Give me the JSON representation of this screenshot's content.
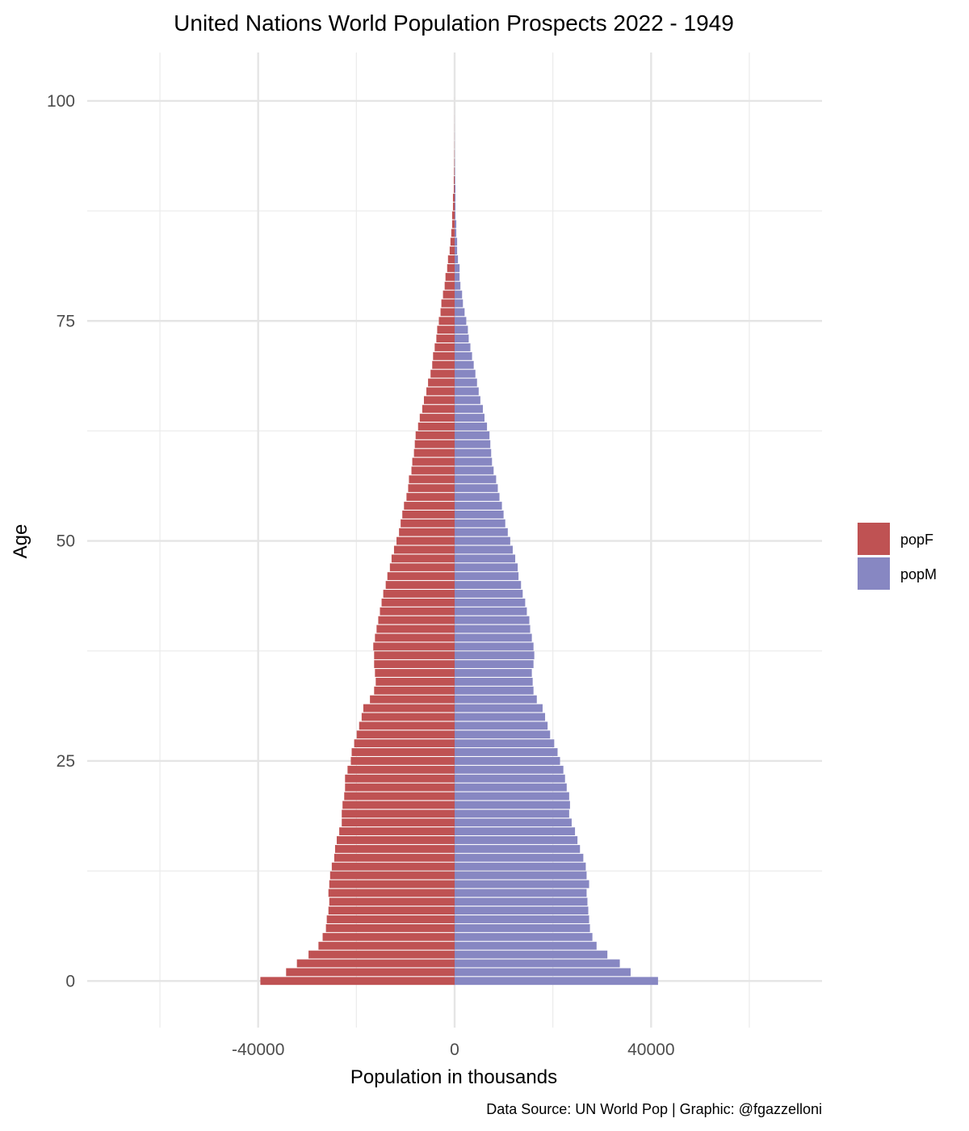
{
  "chart_data": {
    "type": "bar",
    "orientation": "horizontal",
    "title": "United Nations World Population Prospects 2022 - 1949",
    "xlabel": "Population in thousands",
    "ylabel": "Age",
    "caption": "Data Source: UN World Pop | Graphic: @fgazzelloni",
    "xlim": [
      -74800,
      74800
    ],
    "ylim": [
      -5.3,
      105.5
    ],
    "x_ticks": [
      -40000,
      0,
      40000
    ],
    "x_tick_labels": [
      "-40000",
      "0",
      "40000"
    ],
    "x_minor_grid": [
      -60000,
      -20000,
      20000,
      60000
    ],
    "y_ticks": [
      0,
      25,
      50,
      75,
      100
    ],
    "y_tick_labels": [
      "0",
      "25",
      "50",
      "75",
      "100"
    ],
    "y_minor_grid": [
      12.5,
      37.5,
      62.5,
      87.5
    ],
    "grid": true,
    "legend_position": "right",
    "ages_start": 0,
    "series": [
      {
        "name": "popF",
        "color": "#BF5253",
        "sign": -1,
        "values": [
          39550,
          34310,
          32110,
          29740,
          27720,
          26870,
          26200,
          26030,
          25690,
          25520,
          25690,
          25520,
          25350,
          25010,
          24510,
          24340,
          24000,
          23490,
          22980,
          22980,
          22820,
          22480,
          22310,
          22310,
          21800,
          21130,
          20960,
          20450,
          19940,
          19440,
          18930,
          18590,
          17240,
          16390,
          16060,
          16220,
          16390,
          16390,
          16560,
          16220,
          15890,
          15550,
          15210,
          14870,
          14530,
          14030,
          13690,
          13180,
          12840,
          12340,
          11830,
          11320,
          10990,
          10650,
          10310,
          9800,
          9460,
          9300,
          8790,
          8620,
          8280,
          8110,
          7940,
          7440,
          7100,
          6590,
          6250,
          5750,
          5410,
          4900,
          4560,
          4390,
          4060,
          3720,
          3550,
          3210,
          2870,
          2700,
          2370,
          2030,
          1860,
          1520,
          1350,
          1010,
          850,
          680,
          510,
          510,
          340,
          340,
          170,
          170,
          100,
          70,
          50,
          30,
          20,
          15,
          10,
          6,
          4
        ]
      },
      {
        "name": "popM",
        "color": "#8787C2",
        "sign": 1,
        "values": [
          41410,
          35830,
          33630,
          31100,
          28900,
          28050,
          27550,
          27380,
          27210,
          27040,
          26870,
          27380,
          26870,
          26700,
          26200,
          25520,
          25010,
          24510,
          23830,
          23320,
          23490,
          23320,
          22820,
          22480,
          22140,
          21460,
          20960,
          20280,
          19440,
          18930,
          18420,
          17910,
          16730,
          16060,
          15890,
          15720,
          16060,
          16220,
          16060,
          15720,
          15380,
          15210,
          14700,
          14370,
          13860,
          13520,
          13010,
          12840,
          12340,
          11830,
          11320,
          10820,
          10310,
          9970,
          9630,
          9130,
          8790,
          8450,
          7940,
          7610,
          7440,
          7270,
          7100,
          6590,
          6080,
          5750,
          5240,
          4900,
          4560,
          4230,
          3890,
          3550,
          3210,
          2870,
          2700,
          2370,
          2030,
          1690,
          1520,
          1180,
          1010,
          1010,
          680,
          510,
          510,
          340,
          340,
          170,
          170,
          170,
          170,
          100,
          70,
          50,
          30,
          20,
          15,
          10,
          6,
          4,
          2
        ]
      }
    ]
  }
}
